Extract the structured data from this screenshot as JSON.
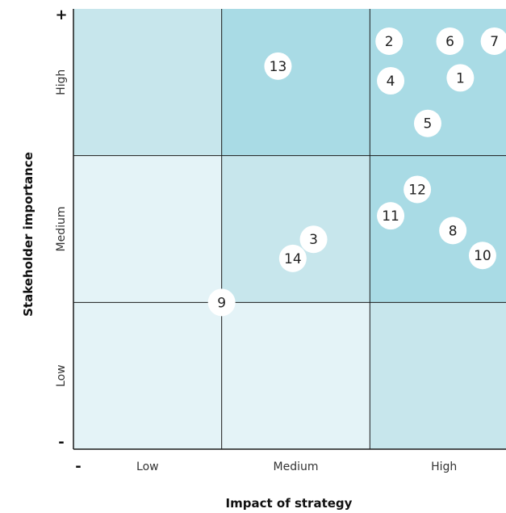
{
  "chart_data": {
    "type": "scatter",
    "xlabel": "Impact of strategy",
    "ylabel": "Stakeholder importance",
    "x_categories": [
      "Low",
      "Medium",
      "High"
    ],
    "y_categories": [
      "Low",
      "Medium",
      "High"
    ],
    "x_min_marker": "-",
    "y_min_marker": "-",
    "y_max_marker": "+",
    "xlim": [
      0,
      3
    ],
    "ylim": [
      0,
      3
    ],
    "cell_colors": [
      [
        "#e4f3f7",
        "#e4f3f7",
        "#c7e6ec"
      ],
      [
        "#e4f3f7",
        "#c7e6ec",
        "#a9dbe5"
      ],
      [
        "#c7e6ec",
        "#a9dbe5",
        "#a9dbe5"
      ]
    ],
    "points": [
      {
        "label": "1",
        "x": 2.61,
        "y": 2.53
      },
      {
        "label": "2",
        "x": 2.13,
        "y": 2.78
      },
      {
        "label": "3",
        "x": 1.62,
        "y": 1.43
      },
      {
        "label": "4",
        "x": 2.14,
        "y": 2.51
      },
      {
        "label": "5",
        "x": 2.39,
        "y": 2.22
      },
      {
        "label": "6",
        "x": 2.54,
        "y": 2.78
      },
      {
        "label": "7",
        "x": 2.84,
        "y": 2.78
      },
      {
        "label": "8",
        "x": 2.56,
        "y": 1.49
      },
      {
        "label": "9",
        "x": 1.0,
        "y": 1.0
      },
      {
        "label": "10",
        "x": 2.76,
        "y": 1.32
      },
      {
        "label": "11",
        "x": 2.14,
        "y": 1.59
      },
      {
        "label": "12",
        "x": 2.32,
        "y": 1.77
      },
      {
        "label": "13",
        "x": 1.38,
        "y": 2.61
      },
      {
        "label": "14",
        "x": 1.48,
        "y": 1.3
      }
    ]
  }
}
